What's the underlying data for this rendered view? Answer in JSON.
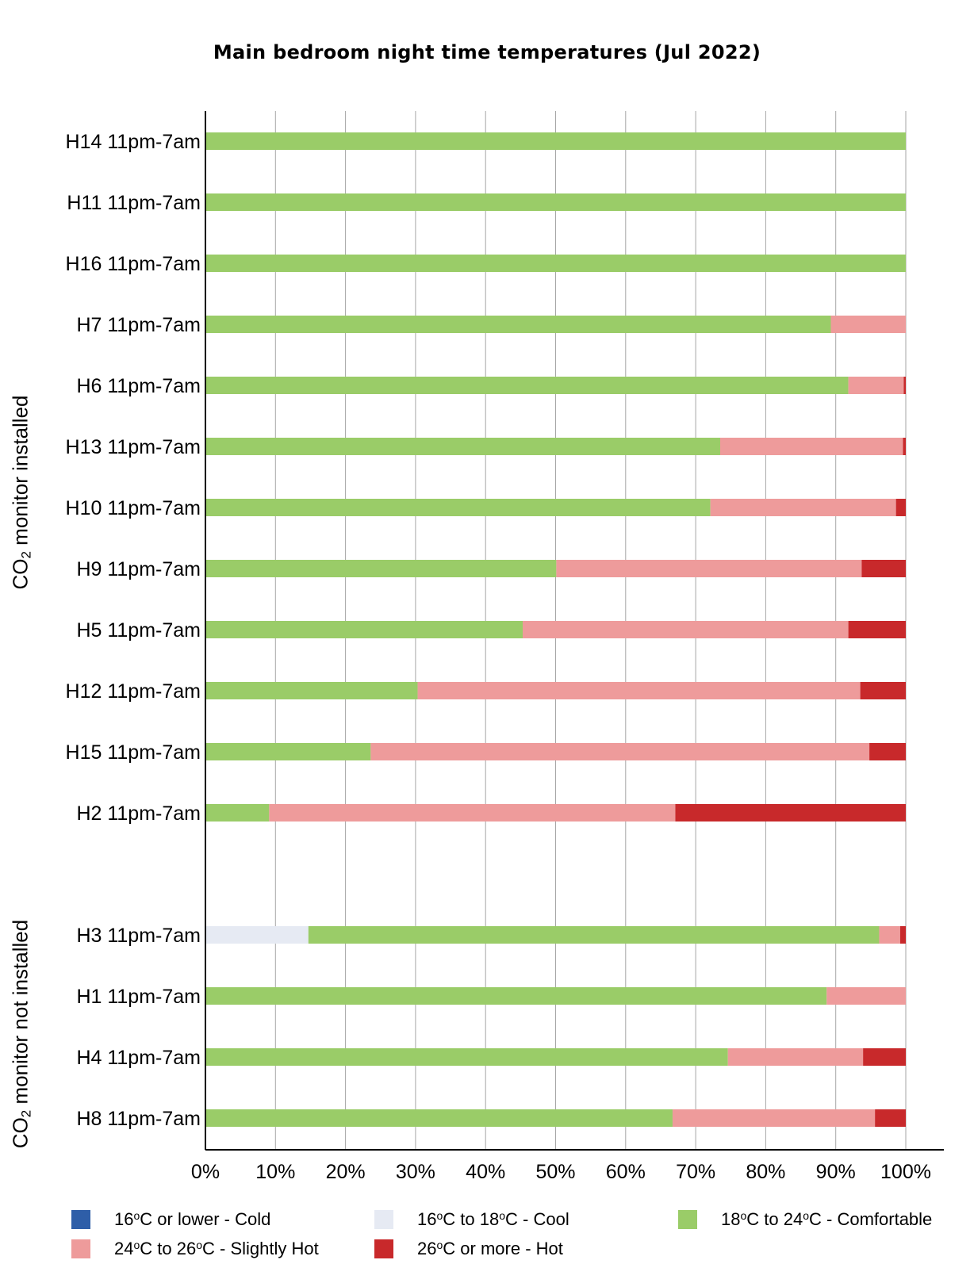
{
  "chart_data": {
    "type": "bar",
    "orientation": "horizontal",
    "stacked": true,
    "normalized": true,
    "title": "Main bedroom night time temperatures (Jul 2022)",
    "xlim": [
      0,
      100
    ],
    "x_ticks": [
      "0%",
      "10%",
      "20%",
      "30%",
      "40%",
      "50%",
      "60%",
      "70%",
      "80%",
      "90%",
      "100%"
    ],
    "grid": "vertical",
    "legend_position": "bottom",
    "groups": [
      {
        "label_pre": "CO",
        "label_sub": "2",
        "label_post": " monitor installed",
        "count": 12
      },
      {
        "label_pre": "CO",
        "label_sub": "2",
        "label_post": " monitor not installed",
        "count": 4
      }
    ],
    "categories": [
      "H14 11pm-7am",
      "H11 11pm-7am",
      "H16 11pm-7am",
      "H7 11pm-7am",
      "H6 11pm-7am",
      "H13 11pm-7am",
      "H10 11pm-7am",
      "H9 11pm-7am",
      "H5 11pm-7am",
      "H12 11pm-7am",
      "H15 11pm-7am",
      "H2 11pm-7am",
      "H3 11pm-7am",
      "H1 11pm-7am",
      "H4 11pm-7am",
      "H8 11pm-7am"
    ],
    "series": [
      {
        "name_parts": [
          "16",
          "o",
          "C or lower - Cold"
        ],
        "color": "#2e5ea8",
        "values": [
          0,
          0,
          0,
          0,
          0,
          0,
          0,
          0,
          0,
          0,
          0,
          0,
          0,
          0,
          0,
          0
        ]
      },
      {
        "name_parts": [
          "16",
          "o",
          "C to 18",
          "o",
          "C - Cool"
        ],
        "color": "#e6eaf3",
        "values": [
          0,
          0,
          0,
          0,
          0,
          0,
          0,
          0,
          0,
          0,
          0,
          0,
          14.7,
          0,
          0,
          0
        ]
      },
      {
        "name_parts": [
          "18",
          "o",
          "C to 24",
          "o",
          "C - Comfortable"
        ],
        "color": "#9acc68",
        "values": [
          100,
          100,
          100,
          89.3,
          91.8,
          73.5,
          72.1,
          50.1,
          45.3,
          30.3,
          23.6,
          9.1,
          81.5,
          88.7,
          74.6,
          66.7
        ]
      },
      {
        "name_parts": [
          "24",
          "o",
          "C to 26",
          "o",
          "C - Slightly Hot"
        ],
        "color": "#ee9b9b",
        "values": [
          0,
          0,
          0,
          10.7,
          7.9,
          26.1,
          26.5,
          43.6,
          46.5,
          63.2,
          71.2,
          58.0,
          3.0,
          11.3,
          19.3,
          28.9
        ]
      },
      {
        "name_parts": [
          "26",
          "o",
          "C or more - Hot"
        ],
        "color": "#c8292b",
        "values": [
          0,
          0,
          0,
          0,
          0.3,
          0.4,
          1.4,
          6.3,
          8.2,
          6.5,
          5.2,
          32.9,
          0.8,
          0,
          6.1,
          4.4
        ]
      }
    ]
  }
}
